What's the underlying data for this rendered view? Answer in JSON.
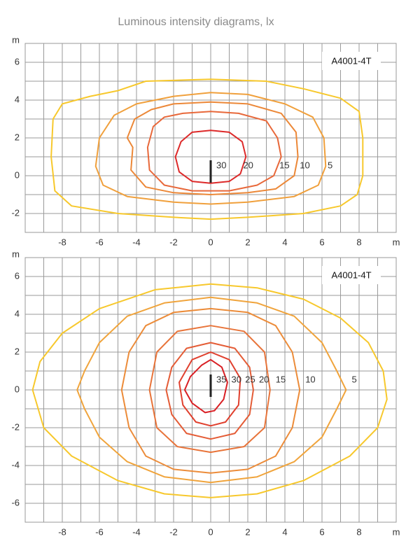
{
  "title": "Luminous intensity diagrams, lx",
  "chart_data": [
    {
      "type": "contour",
      "label": "A4001-4T",
      "xunit": "m",
      "yunit": "m",
      "xlim": [
        -10,
        10
      ],
      "ylim": [
        -3,
        7
      ],
      "xticks": [
        -8,
        -6,
        -4,
        -2,
        0,
        2,
        4,
        6,
        8
      ],
      "yticks": [
        -2,
        0,
        2,
        4,
        6
      ],
      "xgrid": [
        -10,
        -9,
        -8,
        -7,
        -6,
        -5,
        -4,
        -3,
        -2,
        -1,
        0,
        1,
        2,
        3,
        4,
        5,
        6,
        7,
        8,
        9,
        10
      ],
      "ygrid": [
        -3,
        -2,
        -1,
        0,
        1,
        2,
        3,
        4,
        5,
        6,
        7
      ],
      "series": [
        {
          "level": 30,
          "color": "#dd2a2a",
          "x": [
            0,
            1,
            1.7,
            1.9,
            1.6,
            1,
            0,
            -1,
            -1.7,
            -1.9,
            -1.6,
            -1
          ],
          "y": [
            2.4,
            2.3,
            1.8,
            1,
            0.1,
            -0.3,
            -0.4,
            -0.3,
            0.2,
            1,
            1.8,
            2.3
          ]
        },
        {
          "level": 20,
          "color": "#e8683a",
          "x": [
            -1.5,
            0,
            1.5,
            3,
            3.6,
            3.8,
            3.4,
            2.5,
            1,
            -1,
            -2.5,
            -3.3,
            -3.4,
            -3.1,
            -2.5
          ],
          "y": [
            3.3,
            3.4,
            3.3,
            2.9,
            2,
            1,
            0,
            -0.5,
            -0.8,
            -0.8,
            -0.5,
            0.3,
            1.5,
            2.6,
            3.1
          ]
        },
        {
          "level": 15,
          "color": "#ec8838",
          "x": [
            -2,
            0,
            2,
            3.8,
            4.6,
            4.7,
            4.5,
            3.5,
            2,
            0,
            -2,
            -3.5,
            -4.3,
            -4.2,
            -4.5,
            -4.1,
            -3.2
          ],
          "y": [
            3.8,
            3.9,
            3.8,
            3.3,
            2.3,
            1,
            0,
            -0.7,
            -0.9,
            -1,
            -0.9,
            -0.6,
            0.3,
            1.5,
            2,
            3,
            3.5
          ]
        },
        {
          "level": 10,
          "color": "#f0a03c",
          "x": [
            -2,
            0,
            2,
            4,
            5.5,
            6.1,
            6.2,
            5.8,
            4.5,
            2,
            0,
            -2,
            -4.5,
            -5.8,
            -6.2,
            -6,
            -5.2,
            -4
          ],
          "y": [
            4.2,
            4.4,
            4.3,
            3.8,
            3.1,
            2,
            0.5,
            -0.5,
            -1.1,
            -1.4,
            -1.5,
            -1.4,
            -1.1,
            -0.5,
            0.5,
            2,
            3.2,
            3.8
          ]
        },
        {
          "level": 5,
          "color": "#f7c82c",
          "x": [
            -3.5,
            0,
            3,
            5,
            7,
            8,
            8.2,
            8.2,
            7.9,
            7,
            5,
            2,
            0,
            -2,
            -5,
            -7.5,
            -8.4,
            -8.6,
            -8.5,
            -8,
            -6.5,
            -5
          ],
          "y": [
            5,
            5.1,
            5,
            4.6,
            4.1,
            3.4,
            2,
            0,
            -1,
            -1.6,
            -2,
            -2.2,
            -2.3,
            -2.2,
            -2,
            -1.6,
            -0.8,
            1,
            3,
            3.8,
            4.2,
            4.5
          ]
        }
      ]
    },
    {
      "type": "contour",
      "label": "A4001-4T",
      "xunit": "m",
      "yunit": "m",
      "xlim": [
        -10,
        10
      ],
      "ylim": [
        -7,
        7
      ],
      "xticks": [
        -8,
        -6,
        -4,
        -2,
        0,
        2,
        4,
        6,
        8
      ],
      "yticks": [
        -6,
        -4,
        -2,
        0,
        2,
        4,
        6
      ],
      "xgrid": [
        -10,
        -9,
        -8,
        -7,
        -6,
        -5,
        -4,
        -3,
        -2,
        -1,
        0,
        1,
        2,
        3,
        4,
        5,
        6,
        7,
        8,
        9,
        10
      ],
      "ygrid": [
        -7,
        -6,
        -5,
        -4,
        -3,
        -2,
        -1,
        0,
        1,
        2,
        3,
        4,
        5,
        6,
        7
      ],
      "series": [
        {
          "level": 35,
          "color": "#d91f24",
          "x": [
            0,
            0.6,
            0.9,
            0.7,
            0.2,
            -0.3,
            -1,
            -1.4,
            -1.1,
            -0.5
          ],
          "y": [
            1.6,
            1.2,
            0.4,
            -0.5,
            -1.1,
            -1.2,
            -0.7,
            0,
            0.7,
            1.3
          ]
        },
        {
          "level": 30,
          "color": "#e0402e",
          "x": [
            0,
            1,
            1.6,
            1.5,
            0.8,
            0,
            -0.8,
            -1.5,
            -1.7,
            -1
          ],
          "y": [
            2,
            1.6,
            0.6,
            -0.8,
            -1.7,
            -1.9,
            -1.7,
            -0.8,
            0.4,
            1.6
          ]
        },
        {
          "level": 25,
          "color": "#e45c36",
          "x": [
            0,
            1.3,
            2.1,
            2.3,
            2.1,
            1.3,
            0,
            -1.3,
            -2.1,
            -2.4,
            -2.1,
            -1.3
          ],
          "y": [
            2.5,
            2.2,
            1.2,
            0,
            -1.3,
            -2.3,
            -2.6,
            -2.3,
            -1.3,
            0,
            1.2,
            2.2
          ]
        },
        {
          "level": 20,
          "color": "#e8743a",
          "x": [
            0,
            1.8,
            2.9,
            3.2,
            2.9,
            1.8,
            0,
            -1.8,
            -2.9,
            -3.3,
            -2.9,
            -1.8
          ],
          "y": [
            3.4,
            3.1,
            2,
            0,
            -2,
            -3,
            -3.3,
            -3,
            -2,
            0,
            2,
            3.1
          ]
        },
        {
          "level": 15,
          "color": "#ec8c3a",
          "x": [
            0,
            2,
            3.5,
            4.4,
            4.8,
            4.4,
            3.5,
            2,
            0,
            -2,
            -3.5,
            -4.4,
            -4.8,
            -4.4,
            -3.5,
            -2
          ],
          "y": [
            4.3,
            4.1,
            3.4,
            2,
            0,
            -2,
            -3.5,
            -4.2,
            -4.4,
            -4.2,
            -3.5,
            -2,
            0,
            2,
            3.4,
            4.1
          ]
        },
        {
          "level": 10,
          "color": "#f0a43c",
          "x": [
            0,
            2.5,
            4.5,
            6,
            6.8,
            7.3,
            6.8,
            6,
            4.5,
            2.5,
            0,
            -2.5,
            -4.5,
            -6,
            -6.8,
            -7.2,
            -6.8,
            -6,
            -4.5,
            -2.5
          ],
          "y": [
            4.9,
            4.6,
            3.9,
            2.5,
            1,
            0,
            -1,
            -2.5,
            -3.8,
            -4.6,
            -4.9,
            -4.6,
            -3.8,
            -2.5,
            -1,
            0,
            1,
            2.5,
            3.9,
            4.6
          ]
        },
        {
          "level": 5,
          "color": "#f7c82c",
          "x": [
            0,
            2.5,
            5,
            7,
            8.5,
            9.3,
            9.5,
            9,
            7.5,
            5,
            2.5,
            0,
            -2.5,
            -5,
            -7.5,
            -9,
            -9.6,
            -9.2,
            -8,
            -6,
            -3
          ],
          "y": [
            5.6,
            5.4,
            4.8,
            3.8,
            2.5,
            1,
            -0.5,
            -2,
            -3.5,
            -4.8,
            -5.5,
            -5.7,
            -5.5,
            -4.8,
            -3.5,
            -2,
            0,
            1.5,
            3,
            4.3,
            5.3
          ]
        }
      ]
    }
  ]
}
